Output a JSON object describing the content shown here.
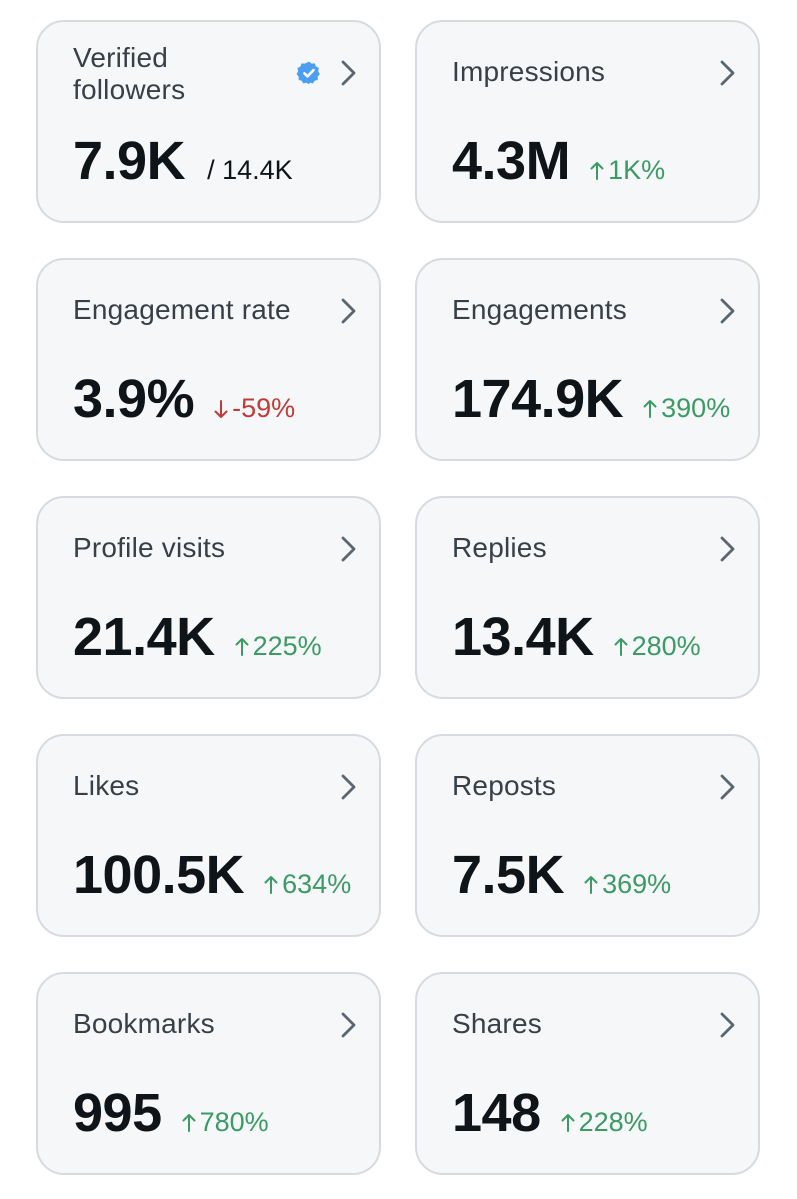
{
  "colors": {
    "card_background": "#f5f7f9",
    "card_border": "#d5dbe0",
    "title_text": "#383f47",
    "value_text": "#0f1419",
    "positive_change": "#3c9a64",
    "negative_change": "#c13a3a",
    "verified_badge": "#4a9ff0",
    "chevron": "#5b6670"
  },
  "icons": {
    "chevron": "chevron-right-icon",
    "verified": "verified-badge-icon",
    "up": "arrow-up-icon",
    "down": "arrow-down-icon"
  },
  "metrics": {
    "verified_followers": {
      "title_line1": "Verified",
      "title_line2": "followers",
      "value": "7.9K",
      "total": "/ 14.4K"
    },
    "impressions": {
      "title": "Impressions",
      "value": "4.3M",
      "change": "1K%",
      "direction": "up"
    },
    "engagement_rate": {
      "title": "Engagement rate",
      "value": "3.9%",
      "change": "-59%",
      "direction": "down"
    },
    "engagements": {
      "title": "Engagements",
      "value": "174.9K",
      "change": "390%",
      "direction": "up"
    },
    "profile_visits": {
      "title": "Profile visits",
      "value": "21.4K",
      "change": "225%",
      "direction": "up"
    },
    "replies": {
      "title": "Replies",
      "value": "13.4K",
      "change": "280%",
      "direction": "up"
    },
    "likes": {
      "title": "Likes",
      "value": "100.5K",
      "change": "634%",
      "direction": "up"
    },
    "reposts": {
      "title": "Reposts",
      "value": "7.5K",
      "change": "369%",
      "direction": "up"
    },
    "bookmarks": {
      "title": "Bookmarks",
      "value": "995",
      "change": "780%",
      "direction": "up"
    },
    "shares": {
      "title": "Shares",
      "value": "148",
      "change": "228%",
      "direction": "up"
    }
  }
}
